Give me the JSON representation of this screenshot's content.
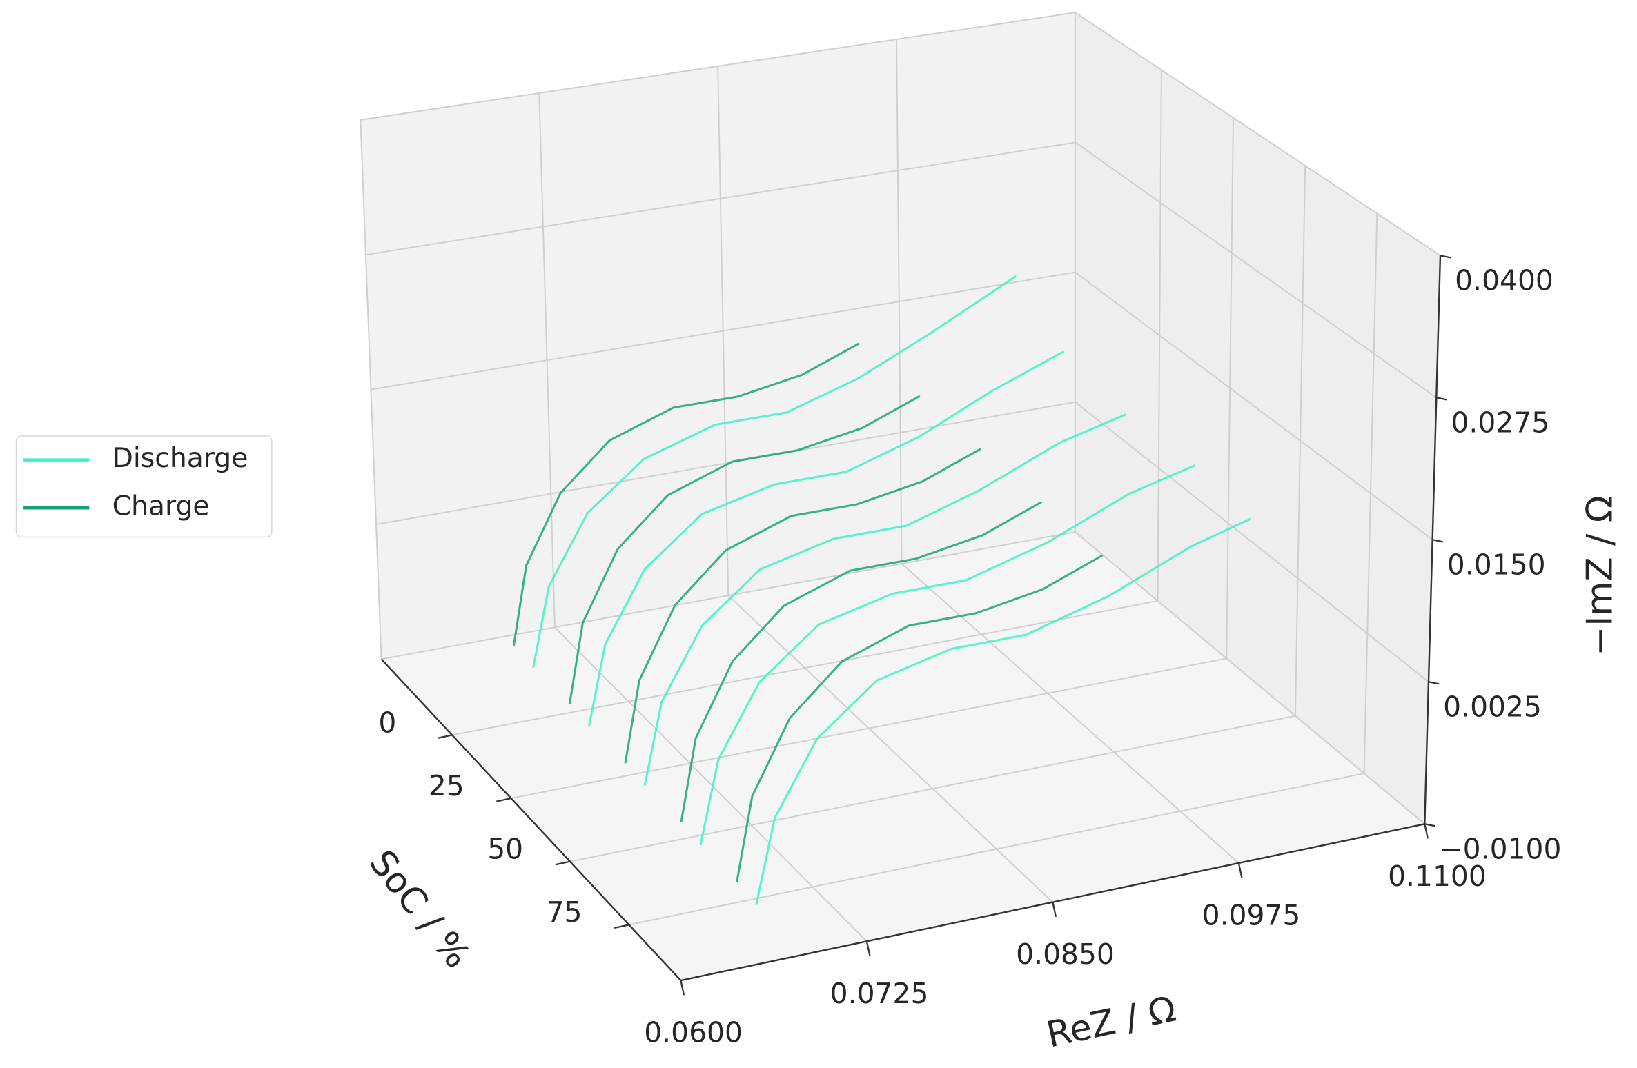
{
  "chart_data": {
    "type": "surface3d",
    "xlabel": "ReZ / Ω",
    "ylabel": "SoC / %",
    "zlabel": "−ImZ / Ω",
    "xlim": [
      0.06,
      0.11
    ],
    "xticks": [
      {
        "value": 0.06,
        "label": "0.0600"
      },
      {
        "value": 0.0725,
        "label": "0.0725"
      },
      {
        "value": 0.085,
        "label": "0.0850"
      },
      {
        "value": 0.0975,
        "label": "0.0975"
      },
      {
        "value": 0.11,
        "label": "0.1100"
      }
    ],
    "ylim": [
      -30,
      97
    ],
    "yticks": [
      0,
      25,
      50,
      75
    ],
    "zlim": [
      -0.01,
      0.04
    ],
    "zticks": [
      {
        "value": -0.01,
        "label": "−0.0100"
      },
      {
        "value": 0.0025,
        "label": "0.0025"
      },
      {
        "value": 0.015,
        "label": "0.0150"
      },
      {
        "value": 0.0275,
        "label": "0.0275"
      },
      {
        "value": 0.04,
        "label": "0.0400"
      }
    ],
    "grid": true,
    "legend": "left",
    "series": [
      {
        "name": "Discharge",
        "color": "#3cf2c4",
        "curves": [
          {
            "soc": 5,
            "rez": [
              0.065,
              0.0662,
              0.069,
              0.073,
              0.078,
              0.083,
              0.088,
              0.093,
              0.099
            ],
            "imz": [
              -0.004,
              0.003,
              0.009,
              0.013,
              0.015,
              0.015,
              0.017,
              0.02,
              0.024
            ]
          },
          {
            "soc": 25,
            "rez": [
              0.0655,
              0.0667,
              0.0695,
              0.0735,
              0.0785,
              0.0835,
              0.0885,
              0.0935,
              0.0985
            ],
            "imz": [
              -0.005,
              0.002,
              0.008,
              0.012,
              0.0135,
              0.0135,
              0.0155,
              0.0185,
              0.021
            ]
          },
          {
            "soc": 45,
            "rez": [
              0.066,
              0.0672,
              0.07,
              0.074,
              0.079,
              0.084,
              0.089,
              0.0945,
              0.099
            ],
            "imz": [
              -0.006,
              0.001,
              0.007,
              0.011,
              0.0125,
              0.0125,
              0.0145,
              0.0175,
              0.019
            ]
          },
          {
            "soc": 65,
            "rez": [
              0.0665,
              0.0677,
              0.0705,
              0.0745,
              0.0795,
              0.0845,
              0.09,
              0.0955,
              0.1
            ],
            "imz": [
              -0.007,
              0.0,
              0.006,
              0.01,
              0.0115,
              0.0115,
              0.0135,
              0.0165,
              0.018
            ]
          },
          {
            "soc": 85,
            "rez": [
              0.067,
              0.0682,
              0.071,
              0.075,
              0.08,
              0.085,
              0.0905,
              0.096,
              0.1
            ],
            "imz": [
              -0.008,
              -0.001,
              0.005,
              0.009,
              0.0105,
              0.0105,
              0.0125,
              0.0155,
              0.017
            ]
          }
        ]
      },
      {
        "name": "Charge",
        "color": "#17a37a",
        "curves": [
          {
            "soc": 0,
            "rez": [
              0.0645,
              0.0655,
              0.068,
              0.0715,
              0.076,
              0.0805,
              0.085,
              0.089
            ],
            "imz": [
              -0.003,
              0.004,
              0.01,
              0.014,
              0.016,
              0.016,
              0.017,
              0.019
            ]
          },
          {
            "soc": 20,
            "rez": [
              0.065,
              0.066,
              0.0685,
              0.072,
              0.0765,
              0.081,
              0.0855,
              0.0895
            ],
            "imz": [
              -0.004,
              0.003,
              0.009,
              0.013,
              0.015,
              0.015,
              0.016,
              0.018
            ]
          },
          {
            "soc": 40,
            "rez": [
              0.0655,
              0.0665,
              0.069,
              0.0725,
              0.077,
              0.0815,
              0.086,
              0.09
            ],
            "imz": [
              -0.005,
              0.002,
              0.008,
              0.012,
              0.014,
              0.014,
              0.015,
              0.017
            ]
          },
          {
            "soc": 60,
            "rez": [
              0.066,
              0.067,
              0.0695,
              0.073,
              0.0775,
              0.082,
              0.0865,
              0.0905
            ],
            "imz": [
              -0.006,
              0.001,
              0.007,
              0.011,
              0.013,
              0.013,
              0.014,
              0.016
            ]
          },
          {
            "soc": 80,
            "rez": [
              0.0665,
              0.0675,
              0.07,
              0.0735,
              0.078,
              0.0825,
              0.087,
              0.091
            ],
            "imz": [
              -0.007,
              0.0,
              0.006,
              0.01,
              0.012,
              0.012,
              0.013,
              0.015
            ]
          }
        ]
      }
    ]
  }
}
